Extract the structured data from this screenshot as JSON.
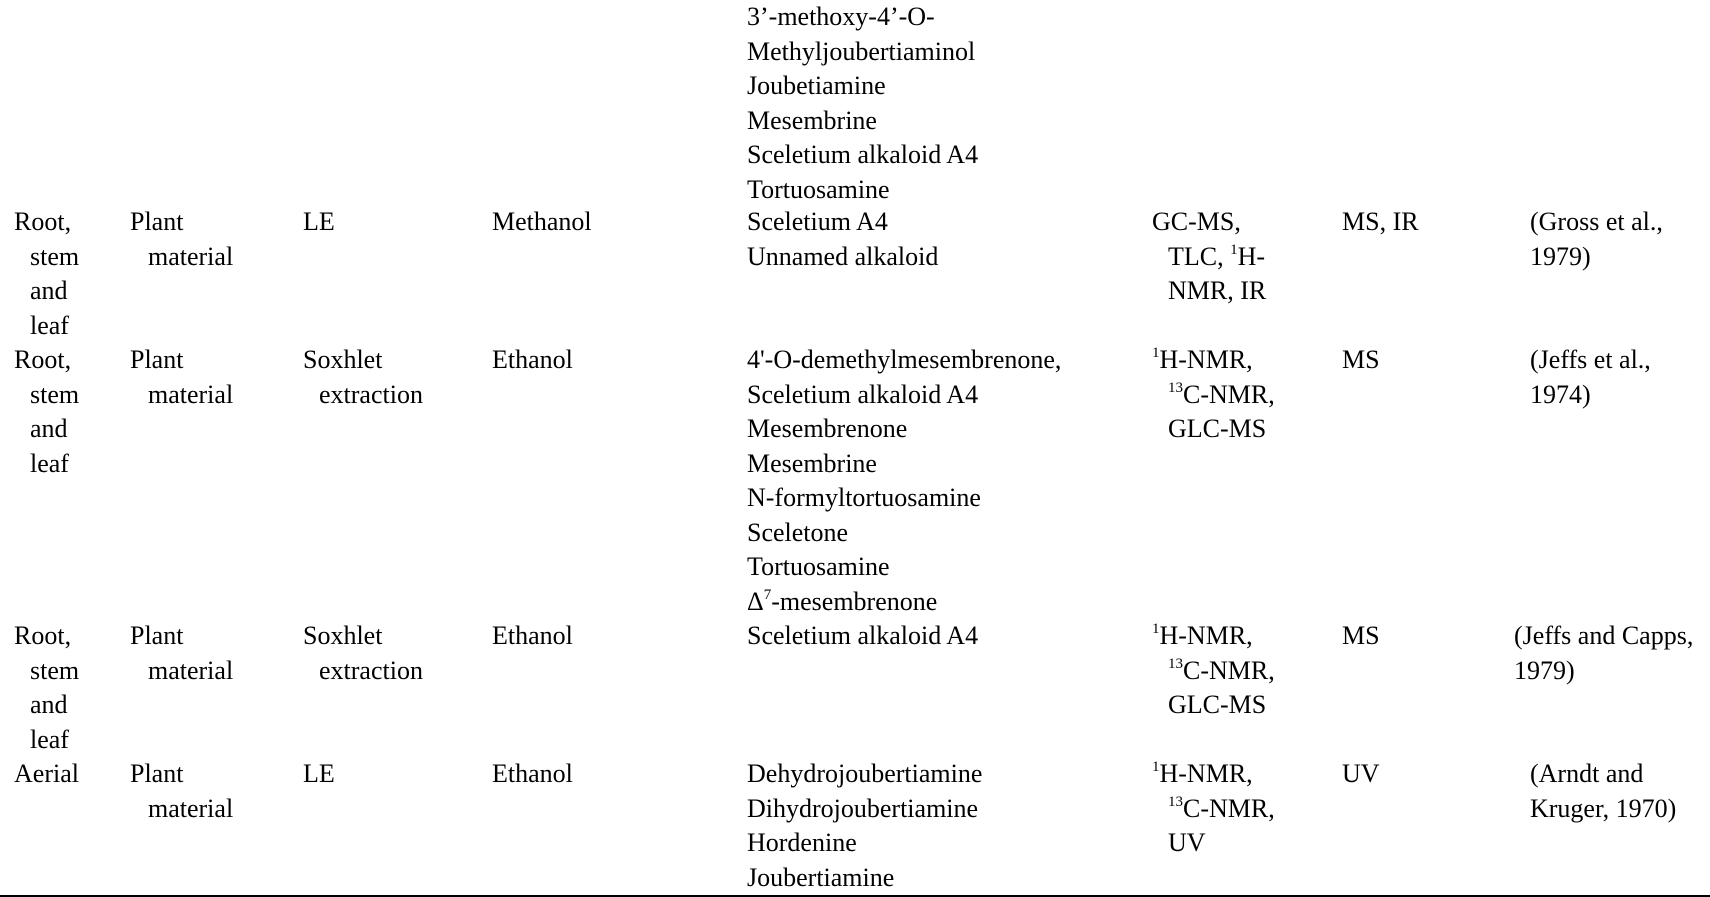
{
  "top_continuation": [
    "3’-methoxy-4’-O-",
    "Methyljoubertiaminol",
    "Joubetiamine",
    "Mesembrine",
    "Sceletium alkaloid A4",
    "Tortuosamine"
  ],
  "rows": [
    {
      "plant_part": [
        "Root,",
        "stem",
        "and",
        "leaf"
      ],
      "material": [
        "Plant",
        "material"
      ],
      "method": [
        "LE"
      ],
      "solvent": [
        "Methanol"
      ],
      "compounds": [
        "Sceletium A4",
        "Unnamed alkaloid"
      ],
      "analysis": {
        "l1": "GC-MS,",
        "l2a": "TLC, ",
        "l2sup": "1",
        "l2b": "H-",
        "l3": "NMR, IR"
      },
      "identification": [
        "MS, IR"
      ],
      "reference": [
        "(Gross et al.,",
        "1979)"
      ]
    },
    {
      "plant_part": [
        "Root,",
        "stem",
        "and",
        "leaf"
      ],
      "material": [
        "Plant",
        "material"
      ],
      "method": [
        "Soxhlet",
        "extraction"
      ],
      "solvent": [
        "Ethanol"
      ],
      "compounds": [
        "4'-O-demethylmesembrenone,",
        "Sceletium alkaloid A4",
        "Mesembrenone",
        "Mesembrine",
        "N-formyltortuosamine",
        "Sceletone",
        "Tortuosamine"
      ],
      "compound_last": {
        "prefix": "Δ",
        "sup": "7",
        "rest": "-mesembrenone"
      },
      "analysis": {
        "sup1": "1",
        "l1": "H-NMR,",
        "sup2": "13",
        "l2": "C-NMR,",
        "l3": "GLC-MS"
      },
      "identification": [
        "MS"
      ],
      "reference": [
        "(Jeffs et al.,",
        "1974)"
      ]
    },
    {
      "plant_part": [
        "Root,",
        "stem",
        "and",
        "leaf"
      ],
      "material": [
        "Plant",
        "material"
      ],
      "method": [
        "Soxhlet",
        "extraction"
      ],
      "solvent": [
        "Ethanol"
      ],
      "compounds": [
        "Sceletium alkaloid A4"
      ],
      "analysis": {
        "sup1": "1",
        "l1": "H-NMR,",
        "sup2": "13",
        "l2": "C-NMR,",
        "l3": "GLC-MS"
      },
      "identification": [
        "MS"
      ],
      "reference": [
        "(Jeffs and Capps,",
        "1979)"
      ]
    },
    {
      "plant_part": [
        "Aerial"
      ],
      "material": [
        "Plant",
        "material"
      ],
      "method": [
        "LE"
      ],
      "solvent": [
        "Ethanol"
      ],
      "compounds": [
        "Dehydrojoubertiamine",
        "Dihydrojoubertiamine",
        "Hordenine",
        "Joubertiamine"
      ],
      "analysis": {
        "sup1": "1",
        "l1": "H-NMR,",
        "sup2": "13",
        "l2": "C-NMR,",
        "l3": "UV"
      },
      "identification": [
        "UV"
      ],
      "reference": [
        "(Arndt and",
        "Kruger, 1970)"
      ]
    }
  ]
}
